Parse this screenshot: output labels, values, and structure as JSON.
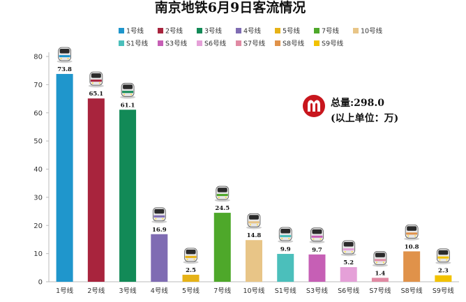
{
  "chart_data": {
    "type": "bar",
    "title": "南京地铁6月9日客流情况",
    "categories": [
      "1号线",
      "2号线",
      "3号线",
      "4号线",
      "5号线",
      "7号线",
      "10号线",
      "S1号线",
      "S3号线",
      "S6号线",
      "S7号线",
      "S8号线",
      "S9号线"
    ],
    "values": [
      73.8,
      65.1,
      61.1,
      16.9,
      2.5,
      24.5,
      14.8,
      9.9,
      9.7,
      5.2,
      1.4,
      10.8,
      2.3
    ],
    "value_labels": [
      "73.8",
      "65.1",
      "61.1",
      "16.9",
      "2.5",
      "24.5",
      "14.8",
      "9.9",
      "9.7",
      "5.2",
      "1.4",
      "10.8",
      "2.3"
    ],
    "colors": [
      "#1f96cc",
      "#a8243d",
      "#128a57",
      "#7f6cb3",
      "#e6b217",
      "#4ea82a",
      "#e8c587",
      "#4bbfbb",
      "#c65fb5",
      "#e5a0d8",
      "#e08aa3",
      "#e0924a",
      "#f2c200"
    ],
    "legend_position": "top",
    "xlabel": "",
    "ylabel": "",
    "ylim": [
      0,
      80
    ],
    "yticks": [
      0,
      10,
      20,
      30,
      40,
      50,
      60,
      70,
      80
    ],
    "grid": false
  },
  "annotation": {
    "total_line": "总量:298.0",
    "unit_line": "(以上单位：万)",
    "logo_color": "#c8161d"
  },
  "icons": {
    "train": "metro-train-icon",
    "logo": "nanjing-metro-logo-icon"
  }
}
